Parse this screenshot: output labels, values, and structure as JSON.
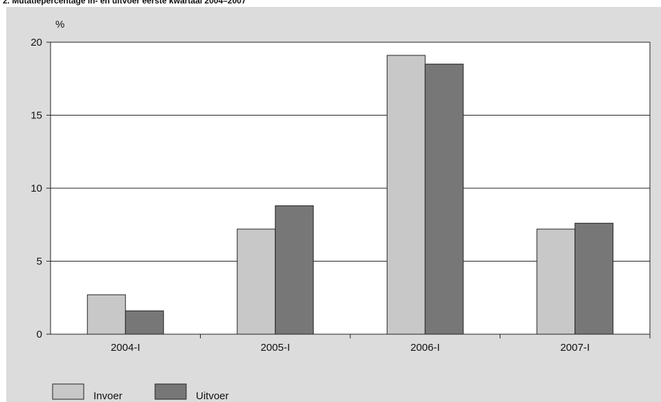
{
  "chart_data": {
    "type": "bar",
    "title": "2. Mutatiepercentage in- en uitvoer eerste kwartaal 2004–2007",
    "ylabel": "%",
    "xlabel": "",
    "categories": [
      "2004-I",
      "2005-I",
      "2006-I",
      "2007-I"
    ],
    "series": [
      {
        "name": "Invoer",
        "values": [
          2.7,
          7.2,
          19.1,
          7.2
        ],
        "color": "#c8c8c8"
      },
      {
        "name": "Uitvoer",
        "values": [
          1.6,
          8.8,
          18.5,
          7.6
        ],
        "color": "#777777"
      }
    ],
    "ylim": [
      0,
      20
    ],
    "yticks": [
      0,
      5,
      10,
      15,
      20
    ],
    "grid": true,
    "legend": "bottom-left"
  }
}
